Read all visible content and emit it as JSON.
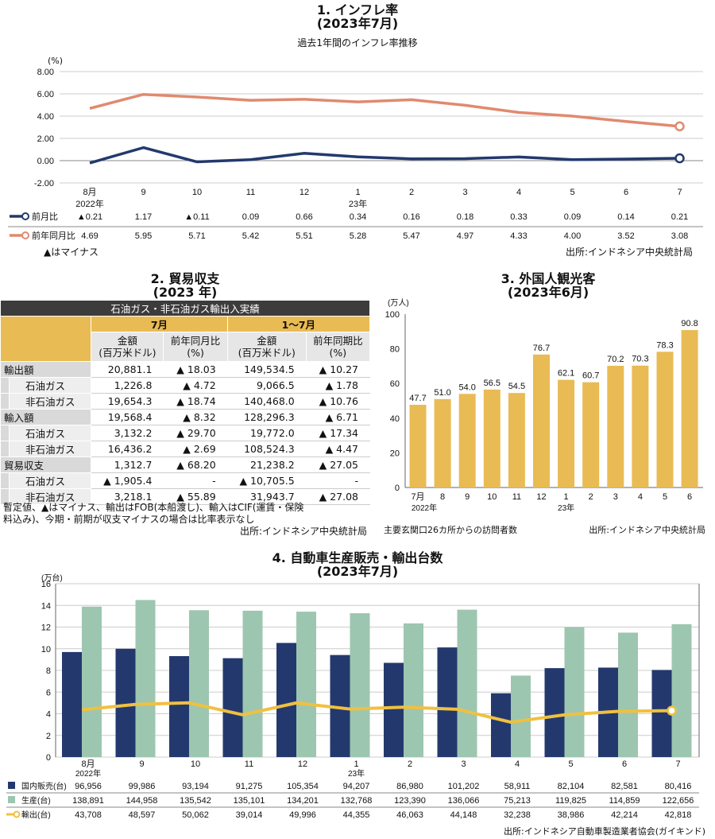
{
  "chart1": {
    "title": "1. インフレ率",
    "subtitle": "(2023年7月)",
    "caption": "過去1年間のインフレ率推移",
    "unit": "(%)",
    "note": "▲はマイナス",
    "source": "出所:インドネシア中央統計局"
  },
  "chart2": {
    "title": "2. 貿易収支",
    "subtitle": "(2023 年)",
    "header": "石油ガス・非石油ガス輸出入実績",
    "period1": "7月",
    "period2": "1～7月",
    "col_amount": "金額",
    "col_amount_unit": "(百万米ドル)",
    "col_yoy_m": "前年同月比",
    "col_yoy_p": "前年同期比",
    "col_pct": "(%)",
    "rows": [
      {
        "label": "輸出額",
        "sub": false,
        "v": [
          "20,881.1",
          "▲ 18.03",
          "149,534.5",
          "▲ 10.27"
        ]
      },
      {
        "label": "石油ガス",
        "sub": true,
        "v": [
          "1,226.8",
          "▲ 4.72",
          "9,066.5",
          "▲ 1.78"
        ]
      },
      {
        "label": "非石油ガス",
        "sub": true,
        "v": [
          "19,654.3",
          "▲ 18.74",
          "140,468.0",
          "▲ 10.76"
        ]
      },
      {
        "label": "輸入額",
        "sub": false,
        "v": [
          "19,568.4",
          "▲ 8.32",
          "128,296.3",
          "▲ 6.71"
        ]
      },
      {
        "label": "石油ガス",
        "sub": true,
        "v": [
          "3,132.2",
          "▲ 29.70",
          "19,772.0",
          "▲ 17.34"
        ]
      },
      {
        "label": "非石油ガス",
        "sub": true,
        "v": [
          "16,436.2",
          "▲ 2.69",
          "108,524.3",
          "▲ 4.47"
        ]
      },
      {
        "label": "貿易収支",
        "sub": false,
        "v": [
          "1,312.7",
          "▲ 68.20",
          "21,238.2",
          "▲ 27.05"
        ]
      },
      {
        "label": "石油ガス",
        "sub": true,
        "v": [
          "▲ 1,905.4",
          "-",
          "▲ 10,705.5",
          "-"
        ]
      },
      {
        "label": "非石油ガス",
        "sub": true,
        "v": [
          "3,218.1",
          "▲ 55.89",
          "31,943.7",
          "▲ 27.08"
        ]
      }
    ],
    "note1": "暫定値、▲はマイナス、輸出はFOB(本船渡し)、輸入はCIF(運賃・保険",
    "note2": "料込み)、今期・前期が収支マイナスの場合は比率表示なし",
    "source": "出所:インドネシア中央統計局"
  },
  "chart3": {
    "title": "3. 外国人観光客",
    "subtitle": "(2023年6月)",
    "note": "主要玄関口26カ所からの訪問者数",
    "source": "出所:インドネシア中央統計局"
  },
  "chart4": {
    "title": "4. 自動車生産販売・輸出台数",
    "subtitle": "(2023年7月)",
    "source": "出所:インドネシア自動車製造業者協会(ガイキンド)"
  },
  "colors": {
    "navy": "#23396e",
    "salmon": "#e08a6f",
    "gold": "#e9bb54",
    "green": "#9dc6b0",
    "line": "#f0c040"
  },
  "chart_data": [
    {
      "type": "line",
      "title": "1. インフレ率",
      "ylabel": "(%)",
      "ylim": [
        -2,
        8
      ],
      "yticks": [
        "8.00",
        "6.00",
        "4.00",
        "2.00",
        "0.00",
        "-2.00"
      ],
      "categories": [
        "8月",
        "9",
        "10",
        "11",
        "12",
        "1",
        "2",
        "3",
        "4",
        "5",
        "6",
        "7"
      ],
      "years": [
        "2022年",
        "",
        "",
        "",
        "",
        "23年",
        "",
        "",
        "",
        "",
        "",
        ""
      ],
      "series": [
        {
          "name": "前月比",
          "values": [
            -0.21,
            1.17,
            -0.11,
            0.09,
            0.66,
            0.34,
            0.16,
            0.18,
            0.33,
            0.09,
            0.14,
            0.21
          ],
          "labels": [
            "▲0.21",
            "1.17",
            "▲0.11",
            "0.09",
            "0.66",
            "0.34",
            "0.16",
            "0.18",
            "0.33",
            "0.09",
            "0.14",
            "0.21"
          ]
        },
        {
          "name": "前年同月比",
          "values": [
            4.69,
            5.95,
            5.71,
            5.42,
            5.51,
            5.28,
            5.47,
            4.97,
            4.33,
            4.0,
            3.52,
            3.08
          ],
          "labels": [
            "4.69",
            "5.95",
            "5.71",
            "5.42",
            "5.51",
            "5.28",
            "5.47",
            "4.97",
            "4.33",
            "4.00",
            "3.52",
            "3.08"
          ]
        }
      ]
    },
    {
      "type": "bar",
      "title": "3. 外国人観光客",
      "ylabel": "(万人)",
      "ylim": [
        0,
        100
      ],
      "yticks": [
        "100",
        "80",
        "60",
        "40",
        "20",
        "0"
      ],
      "categories": [
        "7月",
        "8",
        "9",
        "10",
        "11",
        "12",
        "1",
        "2",
        "3",
        "4",
        "5",
        "6"
      ],
      "years": [
        "2022年",
        "",
        "",
        "",
        "",
        "",
        "23年",
        "",
        "",
        "",
        "",
        ""
      ],
      "values": [
        47.7,
        51.0,
        54.0,
        56.5,
        54.5,
        76.7,
        62.1,
        60.7,
        70.2,
        70.3,
        78.3,
        90.8
      ],
      "labels": [
        "47.7",
        "51.0",
        "54.0",
        "56.5",
        "54.5",
        "76.7",
        "62.1",
        "60.7",
        "70.2",
        "70.3",
        "78.3",
        "90.8"
      ]
    },
    {
      "type": "bar",
      "title": "4. 自動車生産販売・輸出台数",
      "ylabel": "(万台)",
      "ylim": [
        0,
        16
      ],
      "yticks": [
        "16",
        "14",
        "12",
        "10",
        "8",
        "6",
        "4",
        "2",
        "0"
      ],
      "categories": [
        "8月",
        "9",
        "10",
        "11",
        "12",
        "1",
        "2",
        "3",
        "4",
        "5",
        "6",
        "7"
      ],
      "years": [
        "2022年",
        "",
        "",
        "",
        "",
        "23年",
        "",
        "",
        "",
        "",
        "",
        ""
      ],
      "series": [
        {
          "name": "国内販売(台)",
          "kind": "bar",
          "values": [
            96956,
            99986,
            93194,
            91275,
            105354,
            94207,
            86980,
            101202,
            58911,
            82104,
            82581,
            80416
          ],
          "labels": [
            "96,956",
            "99,986",
            "93,194",
            "91,275",
            "105,354",
            "94,207",
            "86,980",
            "101,202",
            "58,911",
            "82,104",
            "82,581",
            "80,416"
          ]
        },
        {
          "name": "生産(台)",
          "kind": "bar",
          "values": [
            138891,
            144958,
            135542,
            135101,
            134201,
            132768,
            123390,
            136066,
            75213,
            119825,
            114859,
            122656
          ],
          "labels": [
            "138,891",
            "144,958",
            "135,542",
            "135,101",
            "134,201",
            "132,768",
            "123,390",
            "136,066",
            "75,213",
            "119,825",
            "114,859",
            "122,656"
          ]
        },
        {
          "name": "輸出(台)",
          "kind": "line",
          "values": [
            43708,
            48597,
            50062,
            39014,
            49996,
            44355,
            46063,
            44148,
            32238,
            38986,
            42214,
            42818
          ],
          "labels": [
            "43,708",
            "48,597",
            "50,062",
            "39,014",
            "49,996",
            "44,355",
            "46,063",
            "44,148",
            "32,238",
            "38,986",
            "42,214",
            "42,818"
          ]
        }
      ]
    }
  ]
}
